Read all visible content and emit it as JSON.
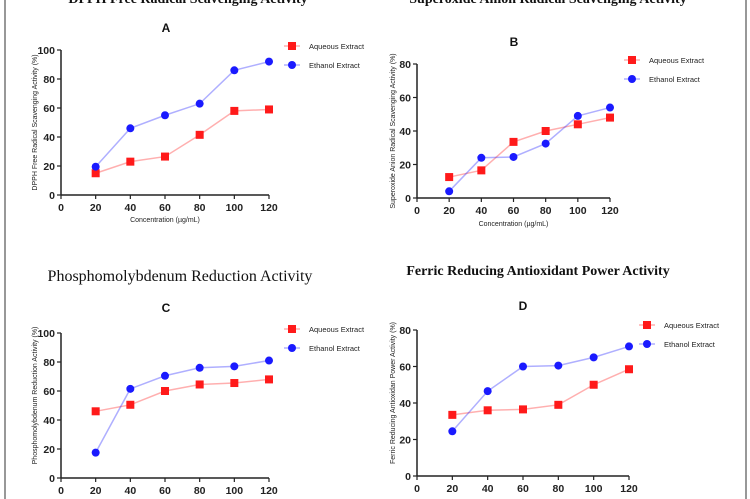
{
  "chart_data": [
    {
      "type": "line",
      "title": "DPPH Free Radical Scavenging Activity",
      "panel_label": "A",
      "xlabel": "Concentration (µg/mL)",
      "ylabel": "DPPH Free Radical Scavenging Activity (%)",
      "xlim": [
        0,
        120
      ],
      "ylim": [
        0,
        100
      ],
      "xticks": [
        0,
        20,
        40,
        60,
        80,
        100,
        120
      ],
      "yticks": [
        0,
        20,
        40,
        60,
        80,
        100
      ],
      "x": [
        20,
        40,
        60,
        80,
        100,
        120
      ],
      "legend": "top-right",
      "grid": false,
      "series": [
        {
          "name": "Aqueous Extract",
          "color": "#ff1a1a",
          "marker": "square",
          "values": [
            15,
            23,
            26.5,
            41.5,
            58,
            59
          ]
        },
        {
          "name": "Ethanol Extract",
          "color": "#1a1aff",
          "marker": "circle",
          "values": [
            19.5,
            46,
            55,
            63,
            86,
            92
          ]
        }
      ]
    },
    {
      "type": "line",
      "title": "Superoxide Anion Radical Scavenging Activity",
      "panel_label": "B",
      "xlabel": "Concentration (µg/mL)",
      "ylabel": "Superoxide Anion Radical Scavenging Activity (%)",
      "xlim": [
        0,
        120
      ],
      "ylim": [
        0,
        80
      ],
      "xticks": [
        0,
        20,
        40,
        60,
        80,
        100,
        120
      ],
      "yticks": [
        0,
        20,
        40,
        60,
        80
      ],
      "x": [
        20,
        40,
        60,
        80,
        100,
        120
      ],
      "legend": "top-right",
      "grid": false,
      "series": [
        {
          "name": "Aqueous Extract",
          "color": "#ff1a1a",
          "marker": "square",
          "values": [
            12.5,
            16.5,
            33.5,
            40,
            44,
            48
          ]
        },
        {
          "name": "Ethanol Extract",
          "color": "#1a1aff",
          "marker": "circle",
          "values": [
            4,
            24,
            24.5,
            32.5,
            49,
            54
          ]
        }
      ]
    },
    {
      "type": "line",
      "title": "Phosphomolybdenum Reduction Activity",
      "panel_label": "C",
      "xlabel": "",
      "ylabel": "Phosphomolybdenum Reduction  Activity (%)",
      "xlim": [
        0,
        120
      ],
      "ylim": [
        0,
        100
      ],
      "xticks": [
        0,
        20,
        40,
        60,
        80,
        100,
        120
      ],
      "yticks": [
        0,
        20,
        40,
        60,
        80,
        100
      ],
      "x": [
        20,
        40,
        60,
        80,
        100,
        120
      ],
      "legend": "top-right",
      "grid": false,
      "series": [
        {
          "name": "Aqueous Extract",
          "color": "#ff1a1a",
          "marker": "square",
          "values": [
            46,
            50.5,
            60,
            64.5,
            65.5,
            68
          ]
        },
        {
          "name": "Ethanol Extract",
          "color": "#1a1aff",
          "marker": "circle",
          "values": [
            17.5,
            61.5,
            70.5,
            76,
            77,
            81
          ]
        }
      ]
    },
    {
      "type": "line",
      "title": "Ferric Reducing Antioxidant Power Activity",
      "panel_label": "D",
      "xlabel": "",
      "ylabel": "Ferric Reducing Antioxidan Power Activity (%)",
      "xlim": [
        0,
        120
      ],
      "ylim": [
        0,
        80
      ],
      "xticks": [
        0,
        20,
        40,
        60,
        80,
        100,
        120
      ],
      "yticks": [
        0,
        20,
        40,
        60,
        80
      ],
      "x": [
        20,
        40,
        60,
        80,
        100,
        120
      ],
      "legend": "top-right",
      "grid": false,
      "series": [
        {
          "name": "Aqueous Extract",
          "color": "#ff1a1a",
          "marker": "square",
          "values": [
            33.5,
            36,
            36.5,
            39,
            50,
            58.5
          ]
        },
        {
          "name": "Ethanol Extract",
          "color": "#1a1aff",
          "marker": "circle",
          "values": [
            24.5,
            46.5,
            60,
            60.5,
            65,
            71
          ]
        }
      ]
    }
  ]
}
